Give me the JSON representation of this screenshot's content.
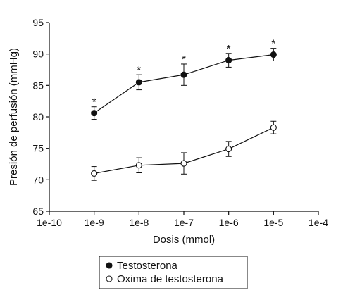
{
  "chart_data": {
    "type": "line",
    "xlabel": "Dosis (mmol)",
    "ylabel": "Presión de perfusión (mmHg)",
    "x_ticks": [
      "1e-10",
      "1e-9",
      "1e-8",
      "1e-7",
      "1e-6",
      "1e-5",
      "1e-4"
    ],
    "y_ticks": [
      65,
      70,
      75,
      80,
      85,
      90,
      95
    ],
    "ylim": [
      65,
      95
    ],
    "x_scale": "log",
    "x": [
      "1e-9",
      "1e-8",
      "1e-7",
      "1e-6",
      "1e-5"
    ],
    "series": [
      {
        "name": "Testosterona",
        "marker": "filled-circle",
        "values": [
          80.6,
          85.5,
          86.7,
          89.0,
          89.9
        ],
        "errors": [
          1.0,
          1.2,
          1.7,
          1.1,
          1.0
        ],
        "significance": [
          "*",
          "*",
          "*",
          "*",
          "*"
        ]
      },
      {
        "name": "Oxima de testosterona",
        "marker": "open-circle",
        "values": [
          71.0,
          72.3,
          72.6,
          74.9,
          78.3
        ],
        "errors": [
          1.1,
          1.2,
          1.7,
          1.2,
          1.0
        ],
        "significance": [
          "",
          "",
          "",
          "",
          ""
        ]
      }
    ],
    "legend": "bottom",
    "grid": false
  }
}
